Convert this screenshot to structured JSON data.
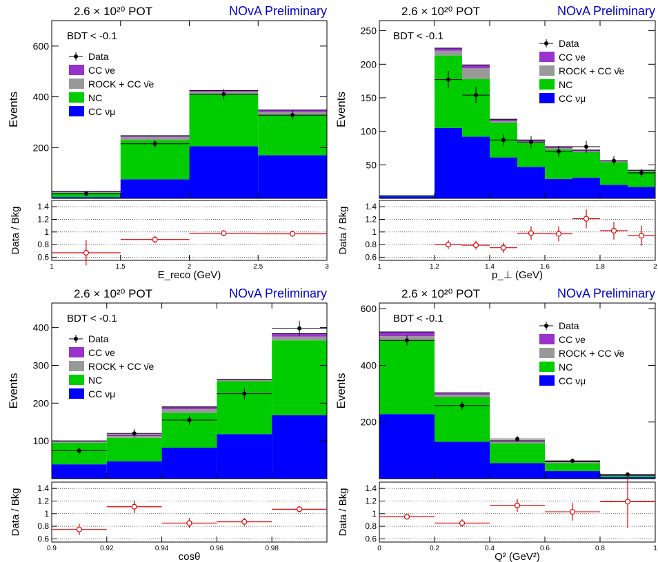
{
  "common": {
    "pot_text": "2.6 × 10²⁰ POT",
    "prelim_text": "NOvA Preliminary",
    "cut_text": "BDT < -0.1",
    "ylabel_top": "Events",
    "ylabel_ratio": "Data / Bkg",
    "legend": [
      "Data",
      "CC νe",
      "ROCK + CC ν̄e",
      "NC",
      "CC νμ"
    ],
    "colors": {
      "nue": "#9933cc",
      "rock": "#999999",
      "nc": "#00cc00",
      "numu": "#0000ff",
      "data": "#000000",
      "ratio": "#e00000",
      "prelim": "#0000cc"
    }
  },
  "chart_data": [
    {
      "type": "bar",
      "xlabel": "E_reco (GeV)",
      "xlim": [
        1,
        3
      ],
      "xticks": [
        1,
        1.5,
        2,
        2.5,
        3
      ],
      "xtick_labels": [
        "1",
        "1.5",
        "2",
        "2.5",
        "3"
      ],
      "ylim": [
        0,
        700
      ],
      "yticks": [
        200,
        400,
        600
      ],
      "ratio_ylim": [
        0.55,
        1.5
      ],
      "ratio_yticks": [
        0.6,
        0.8,
        1,
        1.2,
        1.4
      ],
      "legend_position": "left",
      "bins": [
        [
          1,
          1.5
        ],
        [
          1.5,
          2
        ],
        [
          2,
          2.5
        ],
        [
          2.5,
          3
        ]
      ],
      "stack": {
        "numu": [
          5,
          75,
          205,
          170
        ],
        "nc": [
          17,
          155,
          205,
          158
        ],
        "rock": [
          3,
          12,
          10,
          12
        ],
        "nue": [
          3,
          5,
          5,
          8
        ]
      },
      "data": {
        "x": [
          1.25,
          1.75,
          2.25,
          2.75
        ],
        "y": [
          18,
          215,
          410,
          328
        ],
        "yerr": [
          4,
          15,
          20,
          18
        ]
      },
      "ratio": {
        "x": [
          1.25,
          1.75,
          2.25,
          2.75
        ],
        "y": [
          0.67,
          0.88,
          0.98,
          0.97
        ],
        "yerr": [
          0.2,
          0.06,
          0.05,
          0.05
        ]
      }
    },
    {
      "type": "bar",
      "xlabel": "p_⊥ (GeV)",
      "xlim": [
        1,
        2
      ],
      "xticks": [
        1,
        1.2,
        1.4,
        1.6,
        1.8,
        2
      ],
      "xtick_labels": [
        "1",
        "1.2",
        "1.4",
        "1.6",
        "1.8",
        "2"
      ],
      "ylim": [
        0,
        265
      ],
      "yticks": [
        50,
        100,
        150,
        200,
        250
      ],
      "ratio_ylim": [
        0.55,
        1.5
      ],
      "ratio_yticks": [
        0.6,
        0.8,
        1,
        1.2,
        1.4
      ],
      "legend_position": "right",
      "bins": [
        [
          1,
          1.2
        ],
        [
          1.2,
          1.3
        ],
        [
          1.3,
          1.4
        ],
        [
          1.4,
          1.5
        ],
        [
          1.5,
          1.6
        ],
        [
          1.6,
          1.7
        ],
        [
          1.7,
          1.8
        ],
        [
          1.8,
          1.9
        ],
        [
          1.9,
          2
        ]
      ],
      "stack": {
        "numu": [
          3,
          105,
          92,
          61,
          47,
          29,
          31,
          20,
          17
        ],
        "nc": [
          1,
          108,
          86,
          52,
          36,
          44,
          38,
          34,
          23
        ],
        "rock": [
          0,
          7,
          16,
          2,
          2,
          2,
          1,
          1,
          1
        ],
        "nue": [
          0,
          4,
          5,
          3,
          2,
          2,
          2,
          1,
          1
        ]
      },
      "data": {
        "x": [
          1.25,
          1.35,
          1.45,
          1.55,
          1.65,
          1.75,
          1.85,
          1.95
        ],
        "y": [
          177,
          154,
          87,
          84,
          70,
          77,
          56,
          38
        ],
        "yerr": [
          13,
          12,
          9,
          9,
          8,
          9,
          7,
          6
        ]
      },
      "ratio": {
        "x": [
          1.25,
          1.35,
          1.45,
          1.55,
          1.65,
          1.75,
          1.85,
          1.95
        ],
        "y": [
          0.8,
          0.79,
          0.75,
          0.98,
          0.97,
          1.21,
          1.02,
          0.94
        ],
        "yerr": [
          0.07,
          0.07,
          0.08,
          0.11,
          0.12,
          0.15,
          0.14,
          0.16
        ]
      }
    },
    {
      "type": "bar",
      "xlabel": "cosθ",
      "xlim": [
        0.9,
        1
      ],
      "xticks": [
        0.9,
        0.92,
        0.94,
        0.96,
        0.98
      ],
      "xtick_labels": [
        "0.9",
        "0.92",
        "0.94",
        "0.96",
        "0.98"
      ],
      "ylim": [
        0,
        465
      ],
      "yticks": [
        100,
        200,
        300,
        400
      ],
      "ratio_ylim": [
        0.55,
        1.5
      ],
      "ratio_yticks": [
        0.6,
        0.8,
        1,
        1.2,
        1.4
      ],
      "legend_position": "left",
      "bins": [
        [
          0.9,
          0.92
        ],
        [
          0.92,
          0.94
        ],
        [
          0.94,
          0.96
        ],
        [
          0.96,
          0.98
        ],
        [
          0.98,
          1
        ]
      ],
      "stack": {
        "numu": [
          38,
          46,
          82,
          118,
          168
        ],
        "nc": [
          57,
          62,
          92,
          140,
          198
        ],
        "rock": [
          3,
          5,
          10,
          3,
          10
        ],
        "nue": [
          2,
          3,
          6,
          2,
          8
        ]
      },
      "data": {
        "x": [
          0.91,
          0.93,
          0.95,
          0.97,
          0.99
        ],
        "y": [
          74,
          120,
          155,
          225,
          398
        ],
        "yerr": [
          8,
          11,
          12,
          15,
          20
        ]
      },
      "ratio": {
        "x": [
          0.91,
          0.93,
          0.95,
          0.97,
          0.99
        ],
        "y": [
          0.75,
          1.11,
          0.85,
          0.87,
          1.07
        ],
        "yerr": [
          0.09,
          0.1,
          0.08,
          0.06,
          0.05
        ]
      }
    },
    {
      "type": "bar",
      "xlabel": "Q² (GeV²)",
      "xlim": [
        0,
        1
      ],
      "xticks": [
        0,
        0.2,
        0.4,
        0.6,
        0.8,
        1
      ],
      "xtick_labels": [
        "0",
        "0.2",
        "0.4",
        "0.6",
        "0.8",
        "1"
      ],
      "ylim": [
        0,
        620
      ],
      "yticks": [
        200,
        400,
        600
      ],
      "ratio_ylim": [
        0.55,
        1.5
      ],
      "ratio_yticks": [
        0.6,
        0.8,
        1,
        1.2,
        1.4
      ],
      "legend_position": "right",
      "bins": [
        [
          0,
          0.2
        ],
        [
          0.2,
          0.4
        ],
        [
          0.4,
          0.6
        ],
        [
          0.6,
          0.8
        ],
        [
          0.8,
          1
        ]
      ],
      "stack": {
        "numu": [
          228,
          130,
          55,
          27,
          5
        ],
        "nc": [
          260,
          158,
          70,
          28,
          5
        ],
        "rock": [
          15,
          8,
          5,
          3,
          1
        ],
        "nue": [
          15,
          7,
          4,
          2,
          1
        ]
      },
      "data": {
        "x": [
          0.1,
          0.3,
          0.5,
          0.7,
          0.9
        ],
        "y": [
          488,
          258,
          140,
          63,
          15
        ],
        "yerr": [
          18,
          14,
          10,
          8,
          4
        ]
      },
      "ratio": {
        "x": [
          0.1,
          0.3,
          0.5,
          0.7,
          0.9
        ],
        "y": [
          0.95,
          0.85,
          1.13,
          1.03,
          1.19
        ],
        "yerr": [
          0.04,
          0.06,
          0.1,
          0.14,
          0.42
        ]
      }
    }
  ]
}
